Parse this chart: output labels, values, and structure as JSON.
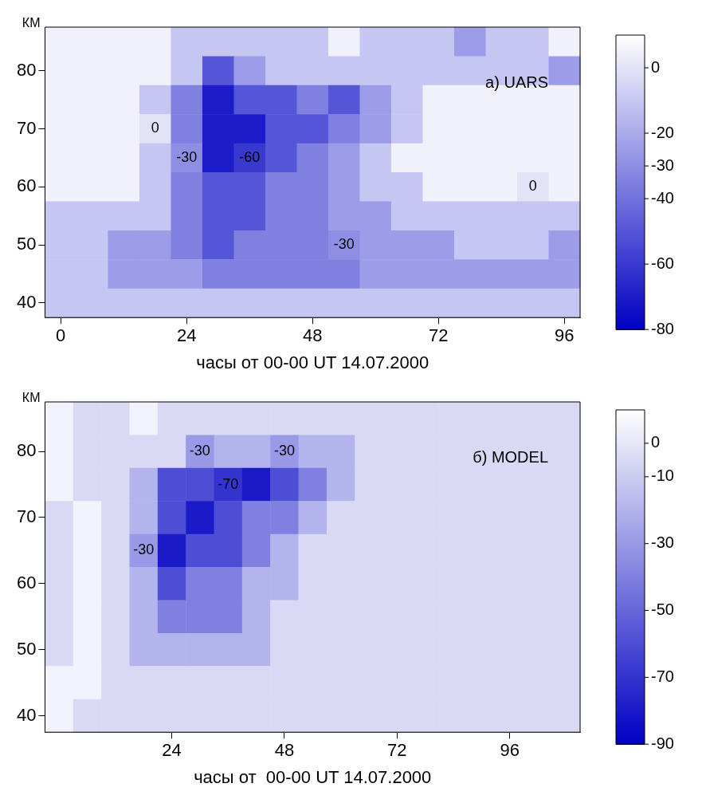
{
  "chart_data": [
    {
      "type": "heatmap",
      "annotations": [
        "a) UARS"
      ],
      "xlabel": "часы от 00-00 UT 14.07.2000",
      "ylabel": "КМ",
      "categories": [
        "0",
        null,
        null,
        null,
        "24",
        null,
        null,
        null,
        "48",
        null,
        null,
        null,
        "72",
        null,
        null,
        null,
        "96"
      ],
      "y_categories": [
        null,
        "80",
        null,
        "70",
        null,
        "60",
        null,
        "50",
        null,
        "40"
      ],
      "clim": [
        -80,
        10
      ],
      "cticks": [
        0,
        -20,
        -30,
        -40,
        -60,
        -80
      ],
      "cells": [
        [
          5,
          5,
          5,
          5,
          -10,
          -10,
          -10,
          -10,
          -10,
          5,
          -10,
          -10,
          -10,
          -25,
          -10,
          -10,
          5
        ],
        [
          5,
          5,
          5,
          5,
          -10,
          -50,
          -25,
          -10,
          -10,
          -10,
          -10,
          -10,
          -10,
          -10,
          -10,
          -10,
          -25
        ],
        [
          5,
          5,
          5,
          -10,
          -35,
          -70,
          -50,
          -50,
          -35,
          -50,
          -25,
          -10,
          5,
          5,
          5,
          5,
          5
        ],
        [
          5,
          5,
          5,
          0,
          -35,
          -70,
          -70,
          -50,
          -50,
          -35,
          -25,
          -10,
          5,
          5,
          5,
          5,
          5
        ],
        [
          5,
          5,
          5,
          -10,
          -30,
          -70,
          -60,
          -50,
          -35,
          -25,
          -10,
          5,
          5,
          5,
          5,
          5,
          5
        ],
        [
          5,
          5,
          5,
          -10,
          -35,
          -50,
          -50,
          -35,
          -35,
          -25,
          -10,
          -10,
          5,
          5,
          5,
          0,
          5
        ],
        [
          -10,
          -10,
          -10,
          -10,
          -35,
          -50,
          -50,
          -35,
          -35,
          -25,
          -25,
          -10,
          -10,
          -10,
          -10,
          -10,
          -10
        ],
        [
          -10,
          -10,
          -25,
          -25,
          -35,
          -50,
          -35,
          -35,
          -35,
          -30,
          -25,
          -25,
          -25,
          -10,
          -10,
          -10,
          -25
        ],
        [
          -10,
          -10,
          -25,
          -25,
          -25,
          -35,
          -35,
          -35,
          -35,
          -35,
          -25,
          -25,
          -25,
          -25,
          -25,
          -25,
          -25
        ],
        [
          -10,
          -10,
          -10,
          -10,
          -10,
          -10,
          -10,
          -10,
          -10,
          -10,
          -10,
          -10,
          -10,
          -10,
          -10,
          -10,
          -10
        ]
      ],
      "cell_labels": [
        [
          null,
          null,
          null,
          null,
          null,
          null,
          null,
          null,
          null,
          null,
          null,
          null,
          null,
          null,
          null,
          null,
          null
        ],
        [
          null,
          null,
          null,
          null,
          null,
          null,
          null,
          null,
          null,
          null,
          null,
          null,
          null,
          null,
          null,
          null,
          null
        ],
        [
          null,
          null,
          null,
          null,
          null,
          null,
          null,
          null,
          null,
          null,
          null,
          null,
          null,
          null,
          null,
          null,
          null
        ],
        [
          null,
          null,
          null,
          "0",
          null,
          null,
          null,
          null,
          null,
          null,
          null,
          null,
          null,
          null,
          null,
          null,
          null
        ],
        [
          null,
          null,
          null,
          null,
          "-30",
          null,
          "-60",
          null,
          null,
          null,
          null,
          null,
          null,
          null,
          null,
          null,
          null
        ],
        [
          null,
          null,
          null,
          null,
          null,
          null,
          null,
          null,
          null,
          null,
          null,
          null,
          null,
          null,
          null,
          "0",
          null
        ],
        [
          null,
          null,
          null,
          null,
          null,
          null,
          null,
          null,
          null,
          null,
          null,
          null,
          null,
          null,
          null,
          null,
          null
        ],
        [
          null,
          null,
          null,
          null,
          null,
          null,
          null,
          null,
          null,
          "-30",
          null,
          null,
          null,
          null,
          null,
          null,
          null
        ],
        [
          null,
          null,
          null,
          null,
          null,
          null,
          null,
          null,
          null,
          null,
          null,
          null,
          null,
          null,
          null,
          null,
          null
        ],
        [
          null,
          null,
          null,
          null,
          null,
          null,
          null,
          null,
          null,
          null,
          null,
          null,
          null,
          null,
          null,
          null,
          null
        ]
      ]
    },
    {
      "type": "heatmap",
      "annotations": [
        "б) MODEL"
      ],
      "xlabel": "часы от  00-00 UT 14.07.2000",
      "ylabel": "КМ",
      "categories": [
        null,
        null,
        null,
        null,
        "24",
        null,
        null,
        null,
        "48",
        null,
        null,
        null,
        "72",
        null,
        null,
        null,
        "96",
        null,
        null
      ],
      "y_categories": [
        null,
        "80",
        null,
        "70",
        null,
        "60",
        null,
        "50",
        null,
        "40"
      ],
      "clim": [
        -90,
        10
      ],
      "cticks": [
        0,
        -10,
        -30,
        -50,
        -70,
        -90
      ],
      "cells": [
        [
          5,
          -5,
          -5,
          5,
          -5,
          -5,
          -5,
          -5,
          -5,
          -5,
          -5,
          -5,
          -5,
          -5,
          -5,
          -5,
          -5,
          -5,
          -5
        ],
        [
          5,
          -5,
          -5,
          -5,
          -5,
          -30,
          -20,
          -20,
          -30,
          -20,
          -20,
          -5,
          -5,
          -5,
          -5,
          -5,
          -5,
          -5,
          -5
        ],
        [
          5,
          -5,
          -5,
          -20,
          -60,
          -60,
          -70,
          -80,
          -60,
          -40,
          -20,
          -5,
          -5,
          -5,
          -5,
          -5,
          -5,
          -5,
          -5
        ],
        [
          -5,
          5,
          -5,
          -20,
          -60,
          -80,
          -60,
          -40,
          -40,
          -20,
          -5,
          -5,
          -5,
          -5,
          -5,
          -5,
          -5,
          -5,
          -5
        ],
        [
          -5,
          5,
          -5,
          -30,
          -80,
          -60,
          -60,
          -40,
          -20,
          -5,
          -5,
          -5,
          -5,
          -5,
          -5,
          -5,
          -5,
          -5,
          -5
        ],
        [
          -5,
          5,
          -5,
          -20,
          -60,
          -40,
          -40,
          -20,
          -20,
          -5,
          -5,
          -5,
          -5,
          -5,
          -5,
          -5,
          -5,
          -5,
          -5
        ],
        [
          -5,
          5,
          -5,
          -20,
          -40,
          -40,
          -40,
          -20,
          -5,
          -5,
          -5,
          -5,
          -5,
          -5,
          -5,
          -5,
          -5,
          -5,
          -5
        ],
        [
          -5,
          5,
          -5,
          -20,
          -20,
          -20,
          -20,
          -20,
          -5,
          -5,
          -5,
          -5,
          -5,
          -5,
          -5,
          -5,
          -5,
          -5,
          -5
        ],
        [
          5,
          5,
          -5,
          -5,
          -5,
          -5,
          -5,
          -5,
          -5,
          -5,
          -5,
          -5,
          -5,
          -5,
          -5,
          -5,
          -5,
          -5,
          -5
        ],
        [
          5,
          -5,
          -5,
          -5,
          -5,
          -5,
          -5,
          -5,
          -5,
          -5,
          -5,
          -5,
          -5,
          -5,
          -5,
          -5,
          -5,
          -5,
          -5
        ]
      ],
      "cell_labels": [
        [
          null,
          null,
          null,
          null,
          null,
          null,
          null,
          null,
          null,
          null,
          null,
          null,
          null,
          null,
          null,
          null,
          null,
          null,
          null
        ],
        [
          null,
          null,
          null,
          null,
          null,
          "-30",
          null,
          null,
          "-30",
          null,
          null,
          null,
          null,
          null,
          null,
          null,
          null,
          null,
          null
        ],
        [
          null,
          null,
          null,
          null,
          null,
          null,
          "-70",
          null,
          null,
          null,
          null,
          null,
          null,
          null,
          null,
          null,
          null,
          null,
          null
        ],
        [
          null,
          null,
          null,
          null,
          null,
          null,
          null,
          null,
          null,
          null,
          null,
          null,
          null,
          null,
          null,
          null,
          null,
          null,
          null
        ],
        [
          null,
          null,
          null,
          "-30",
          null,
          null,
          null,
          null,
          null,
          null,
          null,
          null,
          null,
          null,
          null,
          null,
          null,
          null,
          null
        ],
        [
          null,
          null,
          null,
          null,
          null,
          null,
          null,
          null,
          null,
          null,
          null,
          null,
          null,
          null,
          null,
          null,
          null,
          null,
          null
        ],
        [
          null,
          null,
          null,
          null,
          null,
          null,
          null,
          null,
          null,
          null,
          null,
          null,
          null,
          null,
          null,
          null,
          null,
          null,
          null
        ],
        [
          null,
          null,
          null,
          null,
          null,
          null,
          null,
          null,
          null,
          null,
          null,
          null,
          null,
          null,
          null,
          null,
          null,
          null,
          null
        ],
        [
          null,
          null,
          null,
          null,
          null,
          null,
          null,
          null,
          null,
          null,
          null,
          null,
          null,
          null,
          null,
          null,
          null,
          null,
          null
        ],
        [
          null,
          null,
          null,
          null,
          null,
          null,
          null,
          null,
          null,
          null,
          null,
          null,
          null,
          null,
          null,
          null,
          null,
          null,
          null
        ]
      ]
    }
  ]
}
